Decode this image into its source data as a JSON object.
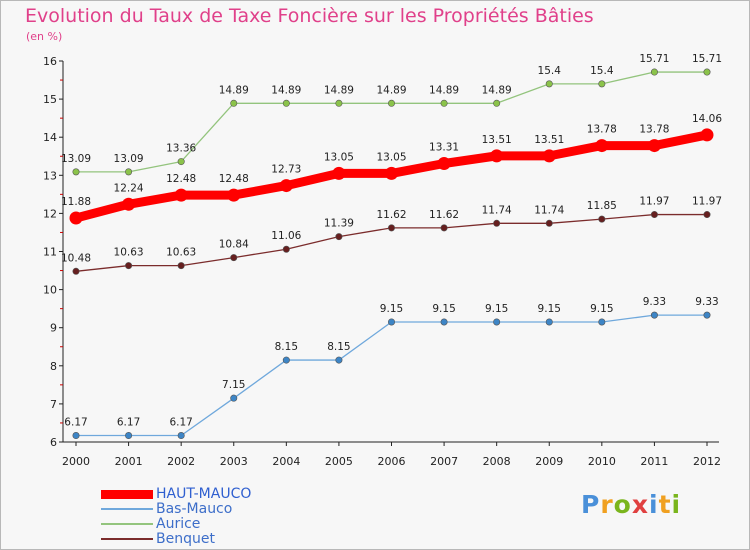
{
  "title": "Evolution du Taux de Taxe Foncière sur les Propriétés Bâties",
  "subtitle": "(en %)",
  "logo": {
    "text": "Proxiti",
    "letter_colors": [
      "#4a90d9",
      "#f0a020",
      "#7ab51d",
      "#e04040",
      "#4a90d9",
      "#f0a020",
      "#7ab51d"
    ]
  },
  "colors": {
    "background": "#f7f7f7",
    "title": "#e0408a",
    "axis": "#222222"
  },
  "chart_data": {
    "type": "line",
    "title": "Evolution du Taux de Taxe Foncière sur les Propriétés Bâties",
    "ylabel": "(en %)",
    "xlabel": "",
    "x": [
      "2000",
      "2001",
      "2002",
      "2003",
      "2004",
      "2005",
      "2006",
      "2007",
      "2008",
      "2009",
      "2010",
      "2011",
      "2012"
    ],
    "ylim": [
      6,
      16
    ],
    "yticks": [
      "6",
      "7",
      "8",
      "9",
      "10",
      "11",
      "12",
      "13",
      "14",
      "15",
      "16"
    ],
    "grid": false,
    "legend_position": "bottom-left",
    "series": [
      {
        "name": "HAUT-MAUCO",
        "color": "#ff0000",
        "marker_color": "#ff0000",
        "emphasis": true,
        "values": [
          11.88,
          12.24,
          12.48,
          12.48,
          12.73,
          13.05,
          13.05,
          13.31,
          13.51,
          13.51,
          13.78,
          13.78,
          14.06
        ],
        "labels": [
          "11.88",
          "12.24",
          "12.48",
          "12.48",
          "12.73",
          "13.05",
          "13.05",
          "13.31",
          "13.51",
          "13.51",
          "13.78",
          "13.78",
          "14.06"
        ]
      },
      {
        "name": "Bas-Mauco",
        "color": "#6fa8dc",
        "marker_color": "#3d85c6",
        "emphasis": false,
        "values": [
          6.17,
          6.17,
          6.17,
          7.15,
          8.15,
          8.15,
          9.15,
          9.15,
          9.15,
          9.15,
          9.15,
          9.33,
          9.33
        ],
        "labels": [
          "6.17",
          "6.17",
          "6.17",
          "7.15",
          "8.15",
          "8.15",
          "9.15",
          "9.15",
          "9.15",
          "9.15",
          "9.15",
          "9.33",
          "9.33"
        ]
      },
      {
        "name": "Aurice",
        "color": "#93c47d",
        "marker_color": "#8bc34a",
        "emphasis": false,
        "values": [
          13.09,
          13.09,
          13.36,
          14.89,
          14.89,
          14.89,
          14.89,
          14.89,
          14.89,
          15.4,
          15.4,
          15.71,
          15.71
        ],
        "labels": [
          "13.09",
          "13.09",
          "13.36",
          "14.89",
          "14.89",
          "14.89",
          "14.89",
          "14.89",
          "14.89",
          "15.4",
          "15.4",
          "15.71",
          "15.71"
        ]
      },
      {
        "name": "Benquet",
        "color": "#7b2c2c",
        "marker_color": "#661f1f",
        "emphasis": false,
        "values": [
          10.48,
          10.63,
          10.63,
          10.84,
          11.06,
          11.39,
          11.62,
          11.62,
          11.74,
          11.74,
          11.85,
          11.97,
          11.97
        ],
        "labels": [
          "10.48",
          "10.63",
          "10.63",
          "10.84",
          "11.06",
          "11.39",
          "11.62",
          "11.62",
          "11.74",
          "11.74",
          "11.85",
          "11.97",
          "11.97"
        ]
      }
    ]
  }
}
